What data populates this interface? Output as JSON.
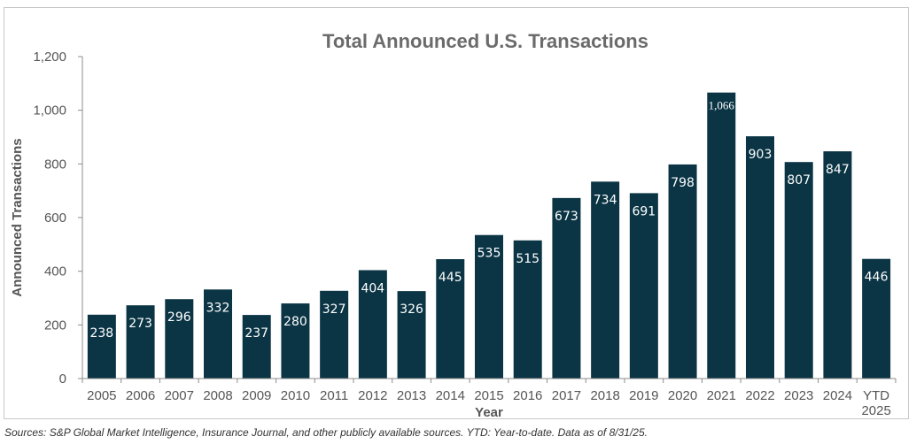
{
  "chart_data": {
    "type": "bar",
    "title": "Total Announced U.S. Transactions",
    "xlabel": "Year",
    "ylabel": "Announced Transactions",
    "categories": [
      "2005",
      "2006",
      "2007",
      "2008",
      "2009",
      "2010",
      "2011",
      "2012",
      "2013",
      "2014",
      "2015",
      "2016",
      "2017",
      "2018",
      "2019",
      "2020",
      "2021",
      "2022",
      "2023",
      "2024",
      "YTD 2025"
    ],
    "values": [
      238,
      273,
      296,
      332,
      237,
      280,
      327,
      404,
      326,
      445,
      535,
      515,
      673,
      734,
      691,
      798,
      1066,
      903,
      807,
      847,
      446
    ],
    "value_labels": [
      "238",
      "273",
      "296",
      "332",
      "237",
      "280",
      "327",
      "404",
      "326",
      "445",
      "535",
      "515",
      "673",
      "734",
      "691",
      "798",
      "1,066",
      "903",
      "807",
      "847",
      "446"
    ],
    "ylim": [
      0,
      1200
    ],
    "yticks": [
      0,
      200,
      400,
      600,
      800,
      1000,
      1200
    ],
    "ytick_labels": [
      "0",
      "200",
      "400",
      "600",
      "800",
      "1,000",
      "1,200"
    ],
    "grid": false,
    "legend": "none",
    "bar_color": "#0b3545",
    "label_color": "#ffffff",
    "title_color": "#6b6b6b",
    "axis_text_color": "#555555"
  },
  "source_note": "Sources: S&P Global Market Intelligence, Insurance Journal, and other publicly available sources. YTD: Year-to-date. Data as of 8/31/25."
}
